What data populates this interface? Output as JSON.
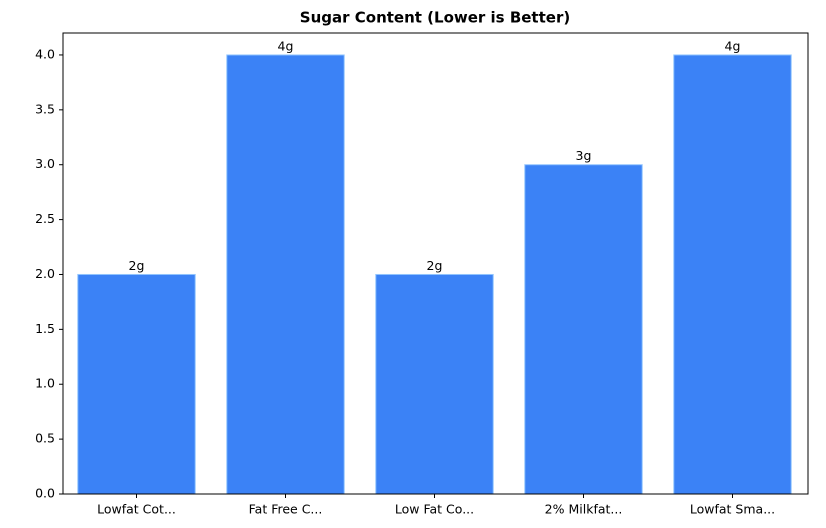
{
  "chart_data": {
    "type": "bar",
    "title": "Sugar Content (Lower is Better)",
    "categories": [
      "Lowfat Cot...",
      "Fat Free C...",
      "Low Fat Co...",
      "2% Milkfat...",
      "Lowfat Sma..."
    ],
    "values": [
      2,
      4,
      2,
      3,
      4
    ],
    "value_labels": [
      "2g",
      "4g",
      "2g",
      "3g",
      "4g"
    ],
    "color": "#3b82f6",
    "ylim": [
      0,
      4.2
    ],
    "yticks": [
      {
        "value": 0,
        "label": "0.0"
      },
      0.5,
      {
        "value": 1,
        "label": "1.0"
      },
      1.5,
      {
        "value": 2,
        "label": "2.0"
      },
      2.5,
      {
        "value": 3,
        "label": "3.0"
      },
      3.5,
      {
        "value": 4,
        "label": "4.0"
      }
    ],
    "grid": false
  }
}
